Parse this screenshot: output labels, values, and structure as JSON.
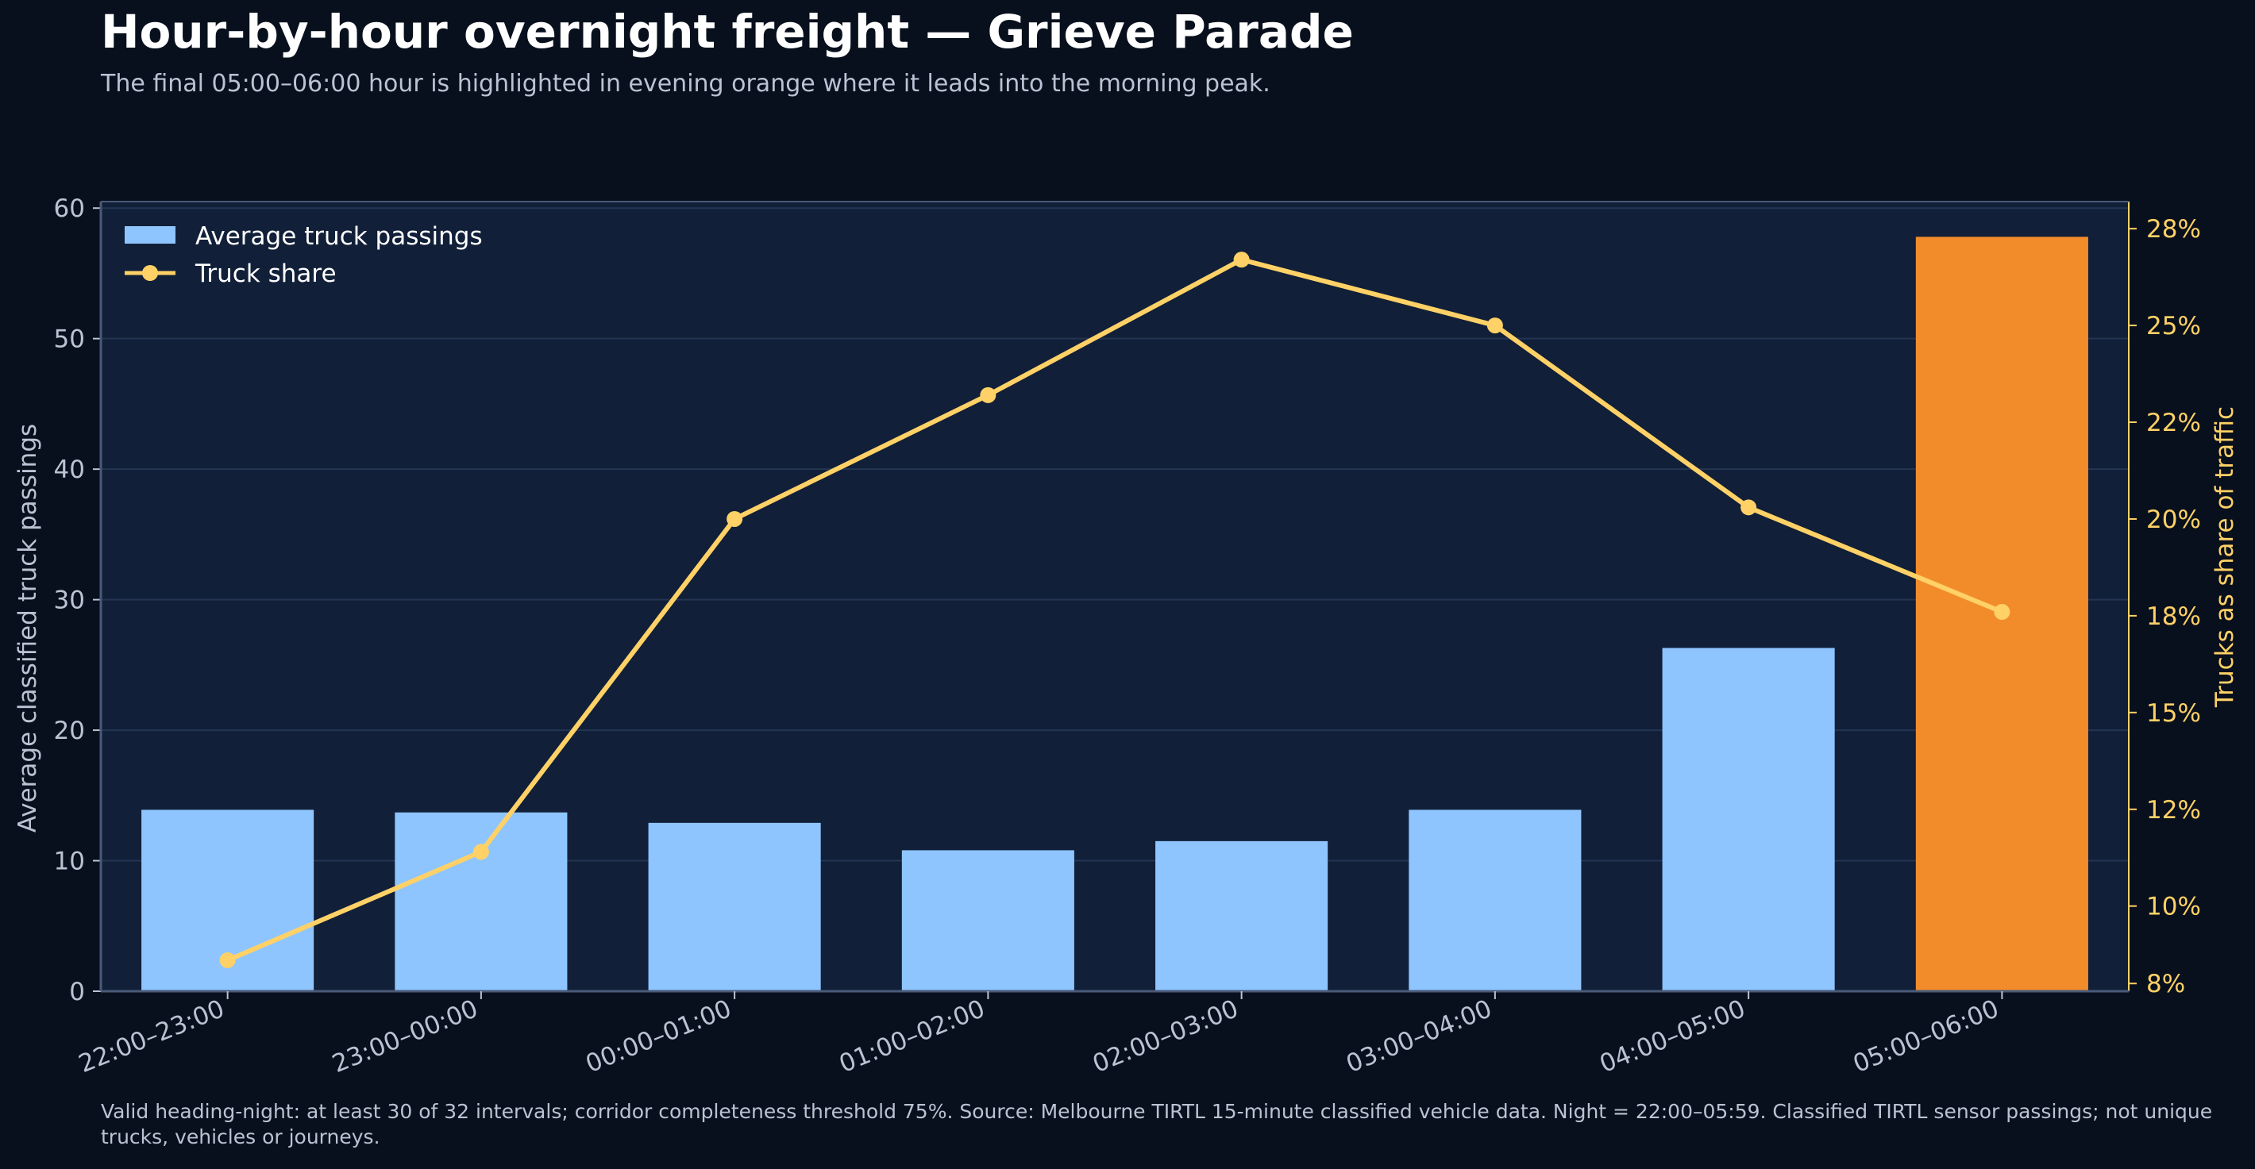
{
  "title": "Hour-by-hour overnight freight — Grieve Parade",
  "subtitle": "The final 05:00–06:00 hour is highlighted in evening orange where it leads into the morning peak.",
  "footnote": "Valid heading-night: at least 30 of 32 intervals; corridor completeness threshold 75%. Source: Melbourne TIRTL 15-minute classified vehicle data. Night = 22:00–05:59. Classified TIRTL sensor passings; not unique trucks, vehicles or journeys.",
  "colors": {
    "background": "#09101d",
    "plot_background": "#111f38",
    "bar": "#8ec5ff",
    "highlight_bar": "#f28c2b",
    "line": "#ffd166",
    "grid": "#233553",
    "axis": "#4a5b78",
    "text": "#b9c3d3",
    "right_axis_text": "#ffd166"
  },
  "chart_data": {
    "type": "bar",
    "categories": [
      "22:00–23:00",
      "23:00–00:00",
      "00:00–01:00",
      "01:00–02:00",
      "02:00–03:00",
      "03:00–04:00",
      "04:00–05:00",
      "05:00–06:00"
    ],
    "series": [
      {
        "name": "Average truck passings",
        "type": "bar",
        "axis": "left",
        "values": [
          13.9,
          13.7,
          12.9,
          10.8,
          11.5,
          13.9,
          26.3,
          57.8
        ],
        "highlight_index": 7
      },
      {
        "name": "Truck share",
        "type": "line",
        "axis": "right",
        "values": [
          8.6,
          11.4,
          20.0,
          23.2,
          26.7,
          25.0,
          20.3,
          17.6
        ]
      }
    ],
    "ylabel": "Average classified truck passings",
    "y2label": "Trucks as share of traffic",
    "ylim": [
      0,
      60.5
    ],
    "y2lim": [
      7.8,
      28.2
    ],
    "yticks": [
      "0",
      "10",
      "20",
      "30",
      "40",
      "50",
      "60"
    ],
    "y2ticks": [
      "8%",
      "10%",
      "12%",
      "15%",
      "18%",
      "20%",
      "22%",
      "25%",
      "28%"
    ],
    "y2tick_values": [
      8,
      10,
      12.5,
      15,
      17.5,
      20,
      22.5,
      25,
      27.5
    ],
    "grid": "horizontal",
    "legend_position": "top-left"
  }
}
